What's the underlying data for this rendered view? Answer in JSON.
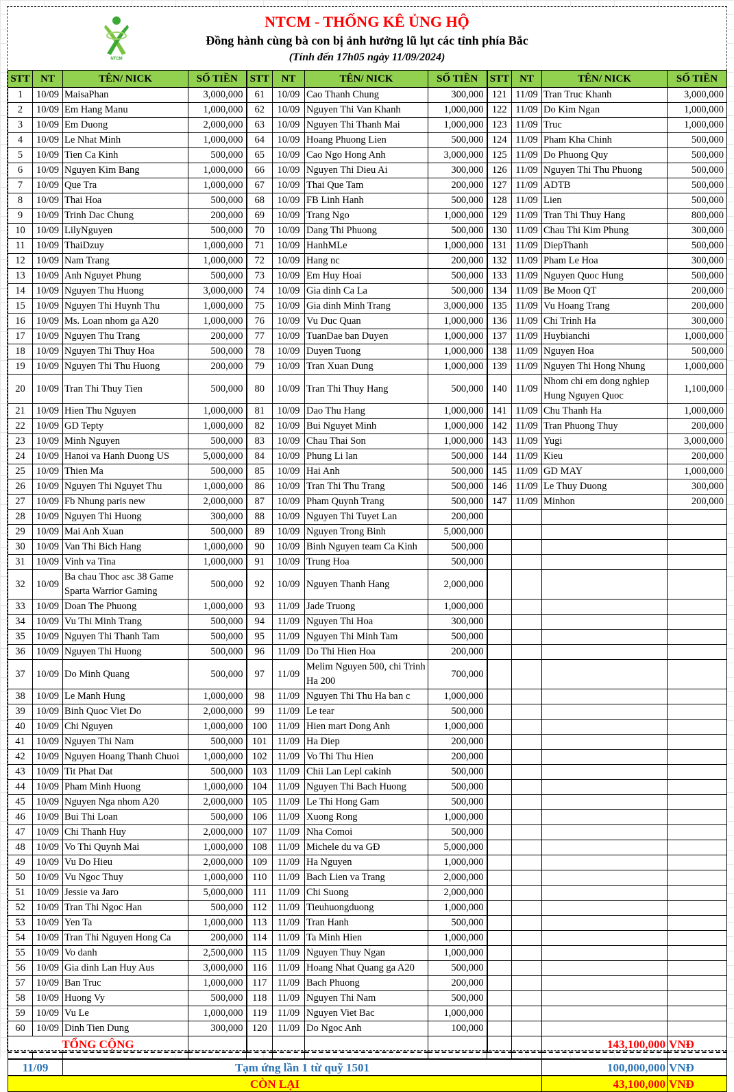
{
  "header": {
    "title": "NTCM - THỐNG KÊ ỦNG HỘ",
    "subtitle": "Đồng hành cùng bà con bị ảnh hưởng lũ lụt các tỉnh phía Bắc",
    "as_of": "(Tính đến 17h05 ngày 11/09/2024)",
    "logo_text": "NTCM"
  },
  "columns": [
    "STT",
    "NT",
    "TÊN/ NICK",
    "SỐ TIỀN"
  ],
  "blocks": [
    [
      [
        "1",
        "10/09",
        "MaisaPhan",
        "3,000,000"
      ],
      [
        "2",
        "10/09",
        "Em Hang Manu",
        "1,000,000"
      ],
      [
        "3",
        "10/09",
        "Em Duong",
        "2,000,000"
      ],
      [
        "4",
        "10/09",
        "Le Nhat Minh",
        "1,000,000"
      ],
      [
        "5",
        "10/09",
        "Tien Ca Kinh",
        "500,000"
      ],
      [
        "6",
        "10/09",
        "Nguyen Kim Bang",
        "1,000,000"
      ],
      [
        "7",
        "10/09",
        "Que Tra",
        "1,000,000"
      ],
      [
        "8",
        "10/09",
        "Thai Hoa",
        "500,000"
      ],
      [
        "9",
        "10/09",
        "Trinh Dac Chung",
        "200,000"
      ],
      [
        "10",
        "10/09",
        "LilyNguyen",
        "500,000"
      ],
      [
        "11",
        "10/09",
        "ThaiDzuy",
        "1,000,000"
      ],
      [
        "12",
        "10/09",
        "Nam Trang",
        "1,000,000"
      ],
      [
        "13",
        "10/09",
        "Anh Nguyet Phung",
        "500,000"
      ],
      [
        "14",
        "10/09",
        "Nguyen Thu Huong",
        "3,000,000"
      ],
      [
        "15",
        "10/09",
        "Nguyen Thi Huynh Thu",
        "1,000,000"
      ],
      [
        "16",
        "10/09",
        "Ms. Loan nhom ga A20",
        "1,000,000"
      ],
      [
        "17",
        "10/09",
        "Nguyen Thu Trang",
        "200,000"
      ],
      [
        "18",
        "10/09",
        "Nguyen Thi Thuy Hoa",
        "500,000"
      ],
      [
        "19",
        "10/09",
        "Nguyen Thi Thu Huong",
        "200,000"
      ],
      [
        "20",
        "10/09",
        "Tran Thi Thuy Tien",
        "500,000"
      ],
      [
        "21",
        "10/09",
        "Hien Thu Nguyen",
        "1,000,000"
      ],
      [
        "22",
        "10/09",
        "GD Tepty",
        "1,000,000"
      ],
      [
        "23",
        "10/09",
        "Minh Nguyen",
        "500,000"
      ],
      [
        "24",
        "10/09",
        "Hanoi va Hanh Duong US",
        "5,000,000"
      ],
      [
        "25",
        "10/09",
        "Thien Ma",
        "500,000"
      ],
      [
        "26",
        "10/09",
        "Nguyen Thi Nguyet Thu",
        "1,000,000"
      ],
      [
        "27",
        "10/09",
        "Fb Nhung paris new",
        "2,000,000"
      ],
      [
        "28",
        "10/09",
        "Nguyen Thi Huong",
        "300,000"
      ],
      [
        "29",
        "10/09",
        "Mai Anh Xuan",
        "500,000"
      ],
      [
        "30",
        "10/09",
        "Van Thi Bich Hang",
        "1,000,000"
      ],
      [
        "31",
        "10/09",
        "Vinh va Tina",
        "1,000,000"
      ],
      [
        "32",
        "10/09",
        "Ba chau Thoc asc 38 Game Sparta Warrior Gaming",
        "500,000"
      ],
      [
        "33",
        "10/09",
        "Doan The Phuong",
        "1,000,000"
      ],
      [
        "34",
        "10/09",
        "Vu Thi Minh Trang",
        "500,000"
      ],
      [
        "35",
        "10/09",
        "Nguyen Thi Thanh Tam",
        "500,000"
      ],
      [
        "36",
        "10/09",
        "Nguyen Thi Huong",
        "500,000"
      ],
      [
        "37",
        "10/09",
        "Do Minh Quang",
        "500,000"
      ],
      [
        "38",
        "10/09",
        "Le Manh Hung",
        "1,000,000"
      ],
      [
        "39",
        "10/09",
        "Binh Quoc Viet Do",
        "2,000,000"
      ],
      [
        "40",
        "10/09",
        "Chi Nguyen",
        "1,000,000"
      ],
      [
        "41",
        "10/09",
        "Nguyen Thi Nam",
        "500,000"
      ],
      [
        "42",
        "10/09",
        "Nguyen Hoang Thanh Chuoi",
        "1,000,000"
      ],
      [
        "43",
        "10/09",
        "Tit Phat Dat",
        "500,000"
      ],
      [
        "44",
        "10/09",
        "Pham Minh Huong",
        "1,000,000"
      ],
      [
        "45",
        "10/09",
        "Nguyen Nga nhom A20",
        "2,000,000"
      ],
      [
        "46",
        "10/09",
        "Bui Thi Loan",
        "500,000"
      ],
      [
        "47",
        "10/09",
        "Chi Thanh Huy",
        "2,000,000"
      ],
      [
        "48",
        "10/09",
        "Vo Thi Quynh Mai",
        "1,000,000"
      ],
      [
        "49",
        "10/09",
        "Vu Do Hieu",
        "2,000,000"
      ],
      [
        "50",
        "10/09",
        "Vu Ngoc Thuy",
        "1,000,000"
      ],
      [
        "51",
        "10/09",
        "Jessie va Jaro",
        "5,000,000"
      ],
      [
        "52",
        "10/09",
        "Tran Thi Ngoc Han",
        "500,000"
      ],
      [
        "53",
        "10/09",
        "Yen Ta",
        "1,000,000"
      ],
      [
        "54",
        "10/09",
        "Tran Thi Nguyen Hong Ca",
        "200,000"
      ],
      [
        "55",
        "10/09",
        "Vo danh",
        "2,500,000"
      ],
      [
        "56",
        "10/09",
        "Gia dinh Lan Huy Aus",
        "3,000,000"
      ],
      [
        "57",
        "10/09",
        "Ban Truc",
        "1,000,000"
      ],
      [
        "58",
        "10/09",
        "Huong Vy",
        "500,000"
      ],
      [
        "59",
        "10/09",
        "Vu Le",
        "1,000,000"
      ],
      [
        "60",
        "10/09",
        "Dinh Tien Dung",
        "300,000"
      ]
    ],
    [
      [
        "61",
        "10/09",
        "Cao Thanh Chung",
        "300,000"
      ],
      [
        "62",
        "10/09",
        "Nguyen Thi Van Khanh",
        "1,000,000"
      ],
      [
        "63",
        "10/09",
        "Nguyen Thi Thanh Mai",
        "1,000,000"
      ],
      [
        "64",
        "10/09",
        "Hoang Phuong Lien",
        "500,000"
      ],
      [
        "65",
        "10/09",
        "Cao Ngo Hong Anh",
        "3,000,000"
      ],
      [
        "66",
        "10/09",
        "Nguyen Thi Dieu Ai",
        "300,000"
      ],
      [
        "67",
        "10/09",
        "Thai Que Tam",
        "200,000"
      ],
      [
        "68",
        "10/09",
        "FB Linh Hanh",
        "500,000"
      ],
      [
        "69",
        "10/09",
        "Trang Ngo",
        "1,000,000"
      ],
      [
        "70",
        "10/09",
        "Dang Thi Phuong",
        "500,000"
      ],
      [
        "71",
        "10/09",
        "HanhMLe",
        "1,000,000"
      ],
      [
        "72",
        "10/09",
        "Hang nc",
        "200,000"
      ],
      [
        "73",
        "10/09",
        "Em Huy Hoai",
        "500,000"
      ],
      [
        "74",
        "10/09",
        "Gia dinh Ca La",
        "500,000"
      ],
      [
        "75",
        "10/09",
        "Gia dinh Minh Trang",
        "3,000,000"
      ],
      [
        "76",
        "10/09",
        "Vu Duc Quan",
        "1,000,000"
      ],
      [
        "77",
        "10/09",
        "TuanDae ban Duyen",
        "1,000,000"
      ],
      [
        "78",
        "10/09",
        "Duyen Tuong",
        "1,000,000"
      ],
      [
        "79",
        "10/09",
        "Tran Xuan Dung",
        "1,000,000"
      ],
      [
        "80",
        "10/09",
        "Tran Thi Thuy Hang",
        "500,000"
      ],
      [
        "81",
        "10/09",
        "Dao Thu Hang",
        "1,000,000"
      ],
      [
        "82",
        "10/09",
        "Bui Nguyet Minh",
        "1,000,000"
      ],
      [
        "83",
        "10/09",
        "Chau Thai Son",
        "1,000,000"
      ],
      [
        "84",
        "10/09",
        "Phung Li lan",
        "500,000"
      ],
      [
        "85",
        "10/09",
        "Hai Anh",
        "500,000"
      ],
      [
        "86",
        "10/09",
        "Tran Thi Thu Trang",
        "500,000"
      ],
      [
        "87",
        "10/09",
        "Pham Quynh Trang",
        "500,000"
      ],
      [
        "88",
        "10/09",
        "Nguyen Thi Tuyet Lan",
        "200,000"
      ],
      [
        "89",
        "10/09",
        "Nguyen Trong Binh",
        "5,000,000"
      ],
      [
        "90",
        "10/09",
        "Binh Nguyen team Ca Kinh",
        "500,000"
      ],
      [
        "91",
        "10/09",
        "Trung Hoa",
        "500,000"
      ],
      [
        "92",
        "10/09",
        "Nguyen Thanh Hang",
        "2,000,000"
      ],
      [
        "93",
        "11/09",
        "Jade Truong",
        "1,000,000"
      ],
      [
        "94",
        "11/09",
        "Nguyen Thi Hoa",
        "300,000"
      ],
      [
        "95",
        "11/09",
        "Nguyen Thi Minh Tam",
        "500,000"
      ],
      [
        "96",
        "11/09",
        "Do Thi Hien Hoa",
        "200,000"
      ],
      [
        "97",
        "11/09",
        "Melim Nguyen 500, chi Trinh Ha 200",
        "700,000"
      ],
      [
        "98",
        "11/09",
        "Nguyen Thi Thu Ha ban c",
        "1,000,000"
      ],
      [
        "99",
        "11/09",
        "Le tear",
        "500,000"
      ],
      [
        "100",
        "11/09",
        "Hien mart Dong Anh",
        "1,000,000"
      ],
      [
        "101",
        "11/09",
        "Ha Diep",
        "200,000"
      ],
      [
        "102",
        "11/09",
        "Vo Thi Thu Hien",
        "200,000"
      ],
      [
        "103",
        "11/09",
        "Chii Lan Lepl cakinh",
        "500,000"
      ],
      [
        "104",
        "11/09",
        "Nguyen Thi Bach Huong",
        "500,000"
      ],
      [
        "105",
        "11/09",
        "Le Thi Hong Gam",
        "500,000"
      ],
      [
        "106",
        "11/09",
        "Xuong Rong",
        "1,000,000"
      ],
      [
        "107",
        "11/09",
        "Nha Comoi",
        "500,000"
      ],
      [
        "108",
        "11/09",
        "Michele du va GĐ",
        "5,000,000"
      ],
      [
        "109",
        "11/09",
        "Ha Nguyen",
        "1,000,000"
      ],
      [
        "110",
        "11/09",
        "Bach Lien va Trang",
        "2,000,000"
      ],
      [
        "111",
        "11/09",
        "Chi Suong",
        "2,000,000"
      ],
      [
        "112",
        "11/09",
        "Tieuhuongduong",
        "1,000,000"
      ],
      [
        "113",
        "11/09",
        "Tran Hanh",
        "500,000"
      ],
      [
        "114",
        "11/09",
        "Ta Minh Hien",
        "1,000,000"
      ],
      [
        "115",
        "11/09",
        "Nguyen Thuy Ngan",
        "1,000,000"
      ],
      [
        "116",
        "11/09",
        "Hoang Nhat Quang ga A20",
        "500,000"
      ],
      [
        "117",
        "11/09",
        "Bach Phuong",
        "200,000"
      ],
      [
        "118",
        "11/09",
        "Nguyen Thi Nam",
        "500,000"
      ],
      [
        "119",
        "11/09",
        "Nguyen Viet Bac",
        "1,000,000"
      ],
      [
        "120",
        "11/09",
        "Do Ngoc Anh",
        "100,000"
      ]
    ],
    [
      [
        "121",
        "11/09",
        "Tran Truc Khanh",
        "3,000,000"
      ],
      [
        "122",
        "11/09",
        "Do Kim Ngan",
        "1,000,000"
      ],
      [
        "123",
        "11/09",
        "Truc",
        "1,000,000"
      ],
      [
        "124",
        "11/09",
        "Pham Kha Chinh",
        "500,000"
      ],
      [
        "125",
        "11/09",
        "Do Phuong Quy",
        "500,000"
      ],
      [
        "126",
        "11/09",
        "Nguyen Thi Thu Phuong",
        "500,000"
      ],
      [
        "127",
        "11/09",
        "ADTB",
        "500,000"
      ],
      [
        "128",
        "11/09",
        "Lien",
        "500,000"
      ],
      [
        "129",
        "11/09",
        "Tran Thi Thuy Hang",
        "800,000"
      ],
      [
        "130",
        "11/09",
        "Chau Thi Kim Phung",
        "300,000"
      ],
      [
        "131",
        "11/09",
        "DiepThanh",
        "500,000"
      ],
      [
        "132",
        "11/09",
        "Pham Le Hoa",
        "300,000"
      ],
      [
        "133",
        "11/09",
        "Nguyen Quoc Hung",
        "500,000"
      ],
      [
        "134",
        "11/09",
        "Be Moon QT",
        "200,000"
      ],
      [
        "135",
        "11/09",
        "Vu Hoang Trang",
        "200,000"
      ],
      [
        "136",
        "11/09",
        "Chi Trinh Ha",
        "300,000"
      ],
      [
        "137",
        "11/09",
        "Huybianchi",
        "1,000,000"
      ],
      [
        "138",
        "11/09",
        "Nguyen Hoa",
        "500,000"
      ],
      [
        "139",
        "11/09",
        "Nguyen Thi Hong Nhung",
        "1,000,000"
      ],
      [
        "140",
        "11/09",
        "Nhom chi em dong nghiep Hung Nguyen Quoc",
        "1,100,000"
      ],
      [
        "141",
        "11/09",
        "Chu Thanh Ha",
        "1,000,000"
      ],
      [
        "142",
        "11/09",
        "Tran Phuong Thuy",
        "200,000"
      ],
      [
        "143",
        "11/09",
        "Yugi",
        "3,000,000"
      ],
      [
        "144",
        "11/09",
        "Kieu",
        "200,000"
      ],
      [
        "145",
        "11/09",
        "GD MAY",
        "1,000,000"
      ],
      [
        "146",
        "11/09",
        "Le Thuy Duong",
        "300,000"
      ],
      [
        "147",
        "11/09",
        "Minhon",
        "200,000"
      ]
    ]
  ],
  "summary": {
    "total_label": "TỔNG CỘNG",
    "total_amount": "143,100,000",
    "currency": "VNĐ",
    "advance_date": "11/09",
    "advance_label": "Tạm ứng lần 1 từ quỹ 1501",
    "advance_amount": "100,000,000",
    "remaining_label": "CÒN LẠI",
    "remaining_amount": "43,100,000"
  },
  "colors": {
    "title": "#ff0000",
    "header_bg": "#92d050",
    "advance_text": "#2e75b6",
    "remaining_bg": "#ffff00",
    "logo": "#7cc242"
  }
}
